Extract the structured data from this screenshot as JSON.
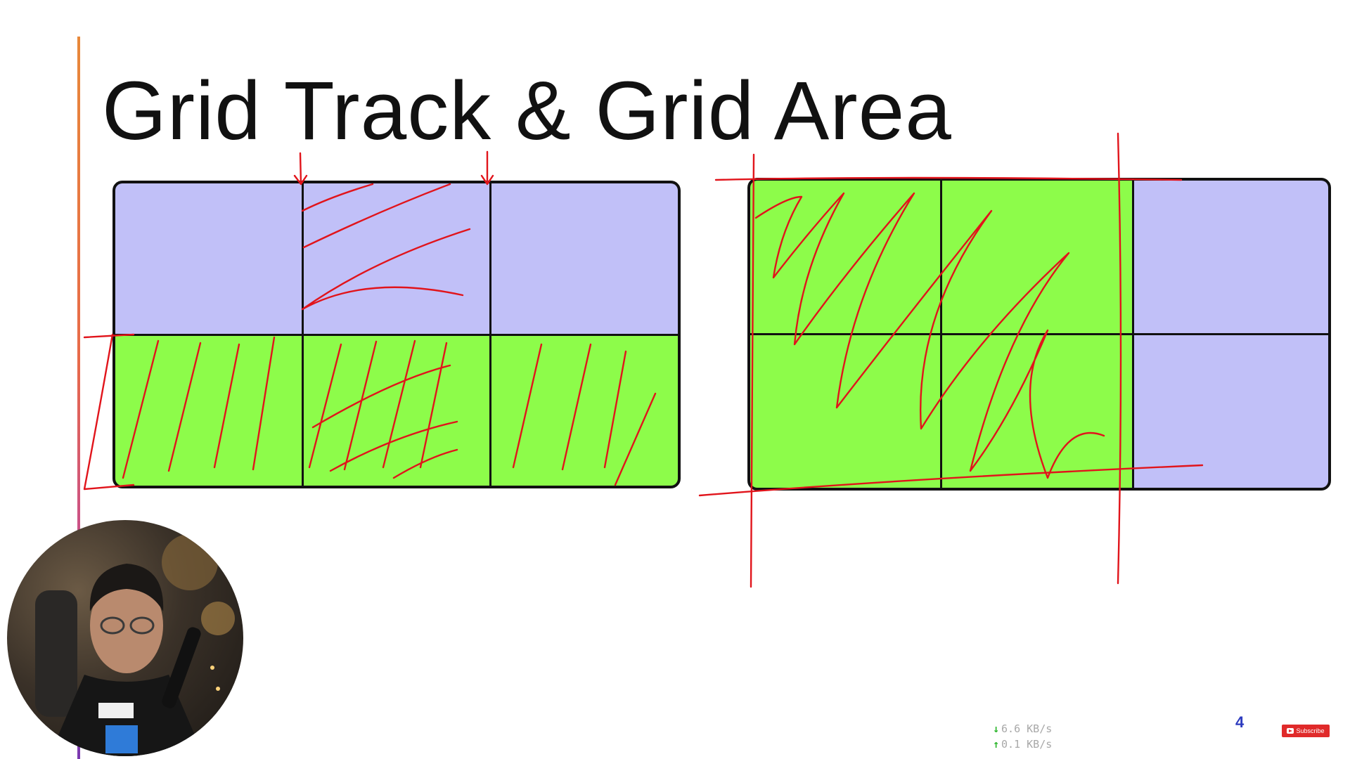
{
  "slide": {
    "title": "Grid Track & Grid Area",
    "page_number": "4"
  },
  "left_grid": {
    "columns": 3,
    "rows": 2,
    "cells": [
      {
        "row": 1,
        "col": 1,
        "color": "#c1c0f8"
      },
      {
        "row": 1,
        "col": 2,
        "color": "#c1c0f8"
      },
      {
        "row": 1,
        "col": 3,
        "color": "#c1c0f8"
      },
      {
        "row": 2,
        "col": 1,
        "color": "#8dfc4a"
      },
      {
        "row": 2,
        "col": 2,
        "color": "#8dfc4a"
      },
      {
        "row": 2,
        "col": 3,
        "color": "#8dfc4a"
      }
    ]
  },
  "right_grid": {
    "columns": 3,
    "rows": 2,
    "cells": [
      {
        "row": 1,
        "col": 1,
        "color": "#8dfc4a"
      },
      {
        "row": 1,
        "col": 2,
        "color": "#8dfc4a"
      },
      {
        "row": 1,
        "col": 3,
        "color": "#c1c0f8"
      },
      {
        "row": 2,
        "col": 1,
        "color": "#8dfc4a"
      },
      {
        "row": 2,
        "col": 2,
        "color": "#8dfc4a"
      },
      {
        "row": 2,
        "col": 3,
        "color": "#c1c0f8"
      }
    ]
  },
  "colors": {
    "track_fill": "#c1c0f8",
    "area_fill": "#8dfc4a",
    "annotation_ink": "#e1141b",
    "accent_line": "#e8883a"
  },
  "network": {
    "download": "6.6 KB/s",
    "upload": "0.1 KB/s",
    "download_icon": "down-arrow-icon",
    "upload_icon": "up-arrow-icon"
  },
  "badge": {
    "subscribe_label": "Subscribe",
    "icon": "youtube-play-icon"
  }
}
